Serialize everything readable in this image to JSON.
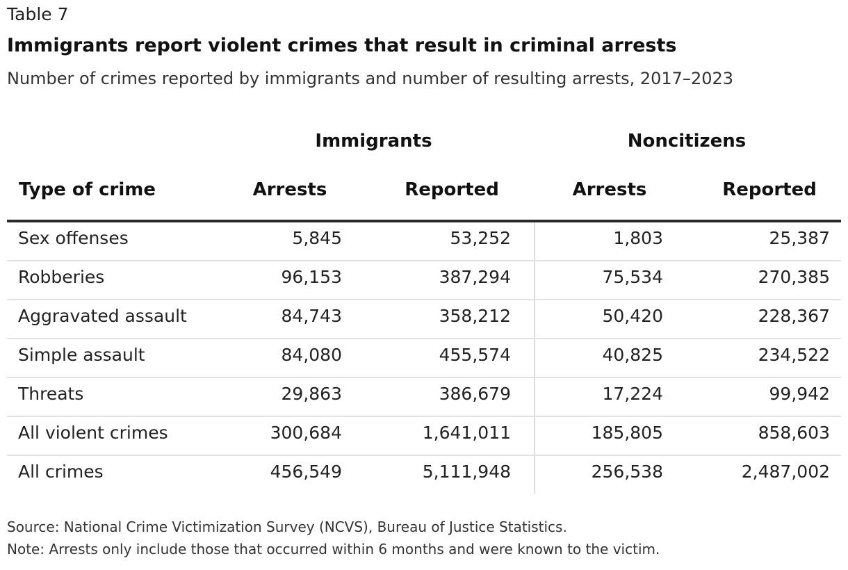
{
  "header": {
    "kicker": "Table 7",
    "title": "Immigrants report violent crimes that result in criminal arrests",
    "subtitle": "Number of crimes reported by immigrants and number of resulting arrests, 2017–2023"
  },
  "table": {
    "group_headers": {
      "immigrants": "Immigrants",
      "noncitizens": "Noncitizens"
    },
    "columns": [
      "Type of crime",
      "Arrests",
      "Reported",
      "Arrests",
      "Reported"
    ],
    "rows": [
      [
        "Sex offenses",
        "5,845",
        "53,252",
        "1,803",
        "25,387"
      ],
      [
        "Robberies",
        "96,153",
        "387,294",
        "75,534",
        "270,385"
      ],
      [
        "Aggravated assault",
        "84,743",
        "358,212",
        "50,420",
        "228,367"
      ],
      [
        "Simple assault",
        "84,080",
        "455,574",
        "40,825",
        "234,522"
      ],
      [
        "Threats",
        "29,863",
        "386,679",
        "17,224",
        "99,942"
      ],
      [
        "All violent crimes",
        "300,684",
        "1,641,011",
        "185,805",
        "858,603"
      ],
      [
        "All crimes",
        "456,549",
        "5,111,948",
        "256,538",
        "2,487,002"
      ]
    ]
  },
  "footer": {
    "source": "Source: National Crime Victimization Survey (NCVS), Bureau of Justice Statistics.",
    "note": "Note: Arrests only include those that occurred within 6 months and were known to the victim."
  },
  "colors": {
    "text": "#222222",
    "rule": "#2a2a2a",
    "row_divider": "#e2e2e2"
  }
}
